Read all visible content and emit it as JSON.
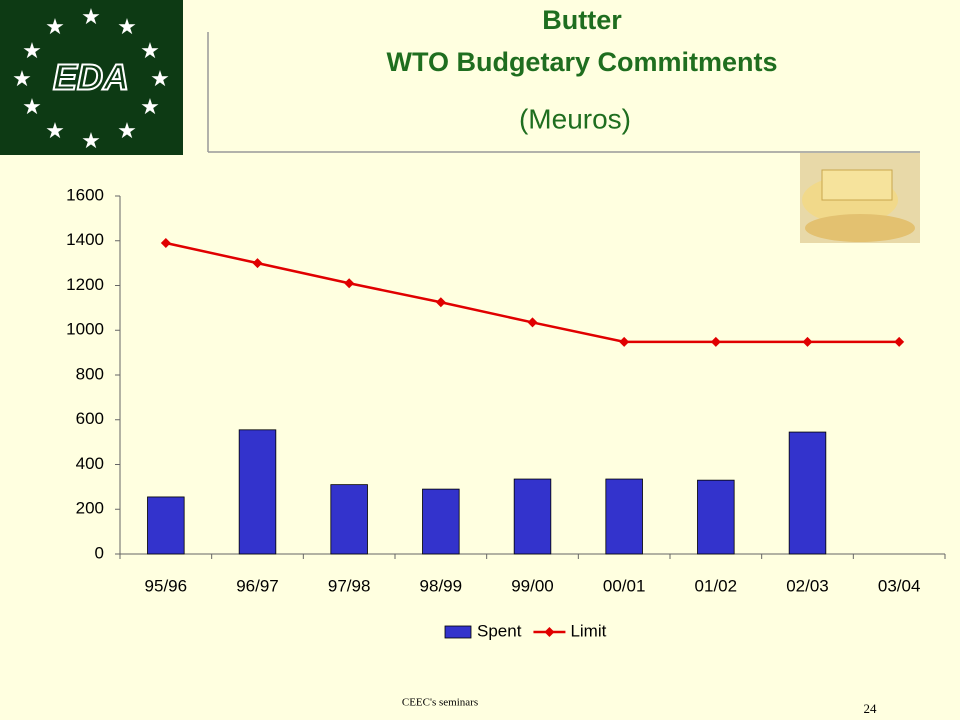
{
  "slide": {
    "logo": "EDA",
    "footer": "CEEC's seminars",
    "page_number": "24"
  },
  "chart_data": {
    "type": "bar_line",
    "title": "Butter",
    "subtitle": "WTO Budgetary Commitments",
    "unit_label": "(Meuros)",
    "categories": [
      "95/96",
      "96/97",
      "97/98",
      "98/99",
      "99/00",
      "00/01",
      "01/02",
      "02/03",
      "03/04"
    ],
    "series": [
      {
        "name": "Spent",
        "type": "bar",
        "color": "#3333cc",
        "values": [
          255,
          555,
          310,
          290,
          335,
          335,
          330,
          545,
          null
        ]
      },
      {
        "name": "Limit",
        "type": "line",
        "color": "#e00000",
        "values": [
          1390,
          1300,
          1210,
          1125,
          1035,
          948,
          948,
          948,
          948
        ]
      }
    ],
    "ylim": [
      0,
      1600
    ],
    "yticks": [
      0,
      200,
      400,
      600,
      800,
      1000,
      1200,
      1400,
      1600
    ],
    "grid": false,
    "legend": "bottom"
  }
}
